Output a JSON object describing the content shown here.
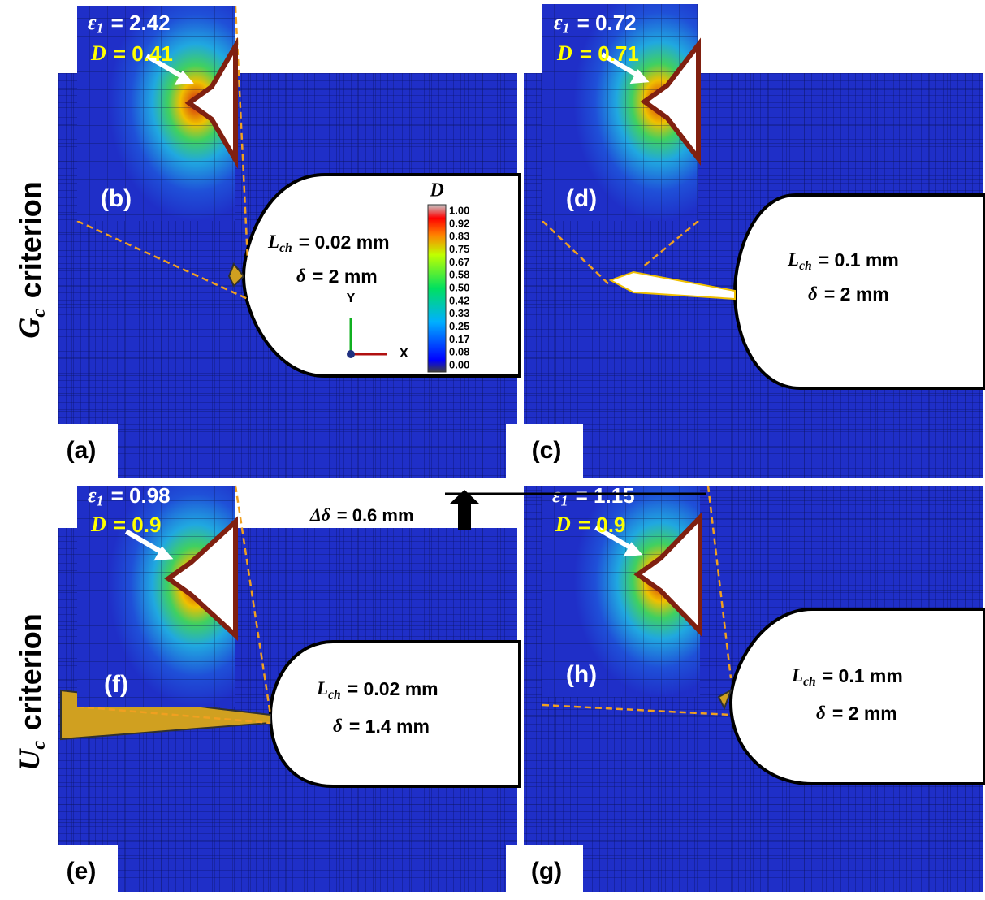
{
  "row_labels": [
    {
      "symbol": "G",
      "subscript": "c",
      "text": "criterion"
    },
    {
      "symbol": "U",
      "subscript": "c",
      "text": "criterion"
    }
  ],
  "panels": [
    {
      "label": "(a)",
      "length": {
        "symbol": "L",
        "subscript": "ch",
        "text": "= 0.02 mm"
      },
      "displacement": {
        "symbol": "δ",
        "text": "= 2 mm"
      },
      "inset": {
        "label": "(b)",
        "strain": {
          "symbol": "ε",
          "subscript": "1",
          "text": "= 2.42"
        },
        "damage": {
          "symbol": "D",
          "text": "= 0.41"
        }
      }
    },
    {
      "label": "(c)",
      "length": {
        "symbol": "L",
        "subscript": "ch",
        "text": "= 0.1 mm"
      },
      "displacement": {
        "symbol": "δ",
        "text": "= 2 mm"
      },
      "inset": {
        "label": "(d)",
        "strain": {
          "symbol": "ε",
          "subscript": "1",
          "text": "= 0.72"
        },
        "damage": {
          "symbol": "D",
          "text": "= 0.71"
        }
      }
    },
    {
      "label": "(e)",
      "length": {
        "symbol": "L",
        "subscript": "ch",
        "text": "= 0.02 mm"
      },
      "displacement": {
        "symbol": "δ",
        "text": "= 1.4 mm"
      },
      "inset": {
        "label": "(f)",
        "strain": {
          "symbol": "ε",
          "subscript": "1",
          "text": "= 0.98"
        },
        "damage": {
          "symbol": "D",
          "text": "= 0.9"
        }
      }
    },
    {
      "label": "(g)",
      "length": {
        "symbol": "L",
        "subscript": "ch",
        "text": "= 0.1 mm"
      },
      "displacement": {
        "symbol": "δ",
        "text": "= 2 mm"
      },
      "inset": {
        "label": "(h)",
        "strain": {
          "symbol": "ε",
          "subscript": "1",
          "text": "= 1.15"
        },
        "damage": {
          "symbol": "D",
          "text": "= 0.9"
        }
      }
    }
  ],
  "legend": {
    "title": "D",
    "ticks": [
      "1.00",
      "0.92",
      "0.83",
      "0.75",
      "0.67",
      "0.58",
      "0.50",
      "0.42",
      "0.33",
      "0.25",
      "0.17",
      "0.08",
      "0.00"
    ]
  },
  "axes": {
    "y": "Y",
    "x": "X"
  },
  "increment": {
    "symbol": "Δδ",
    "text": "= 0.6 mm"
  }
}
